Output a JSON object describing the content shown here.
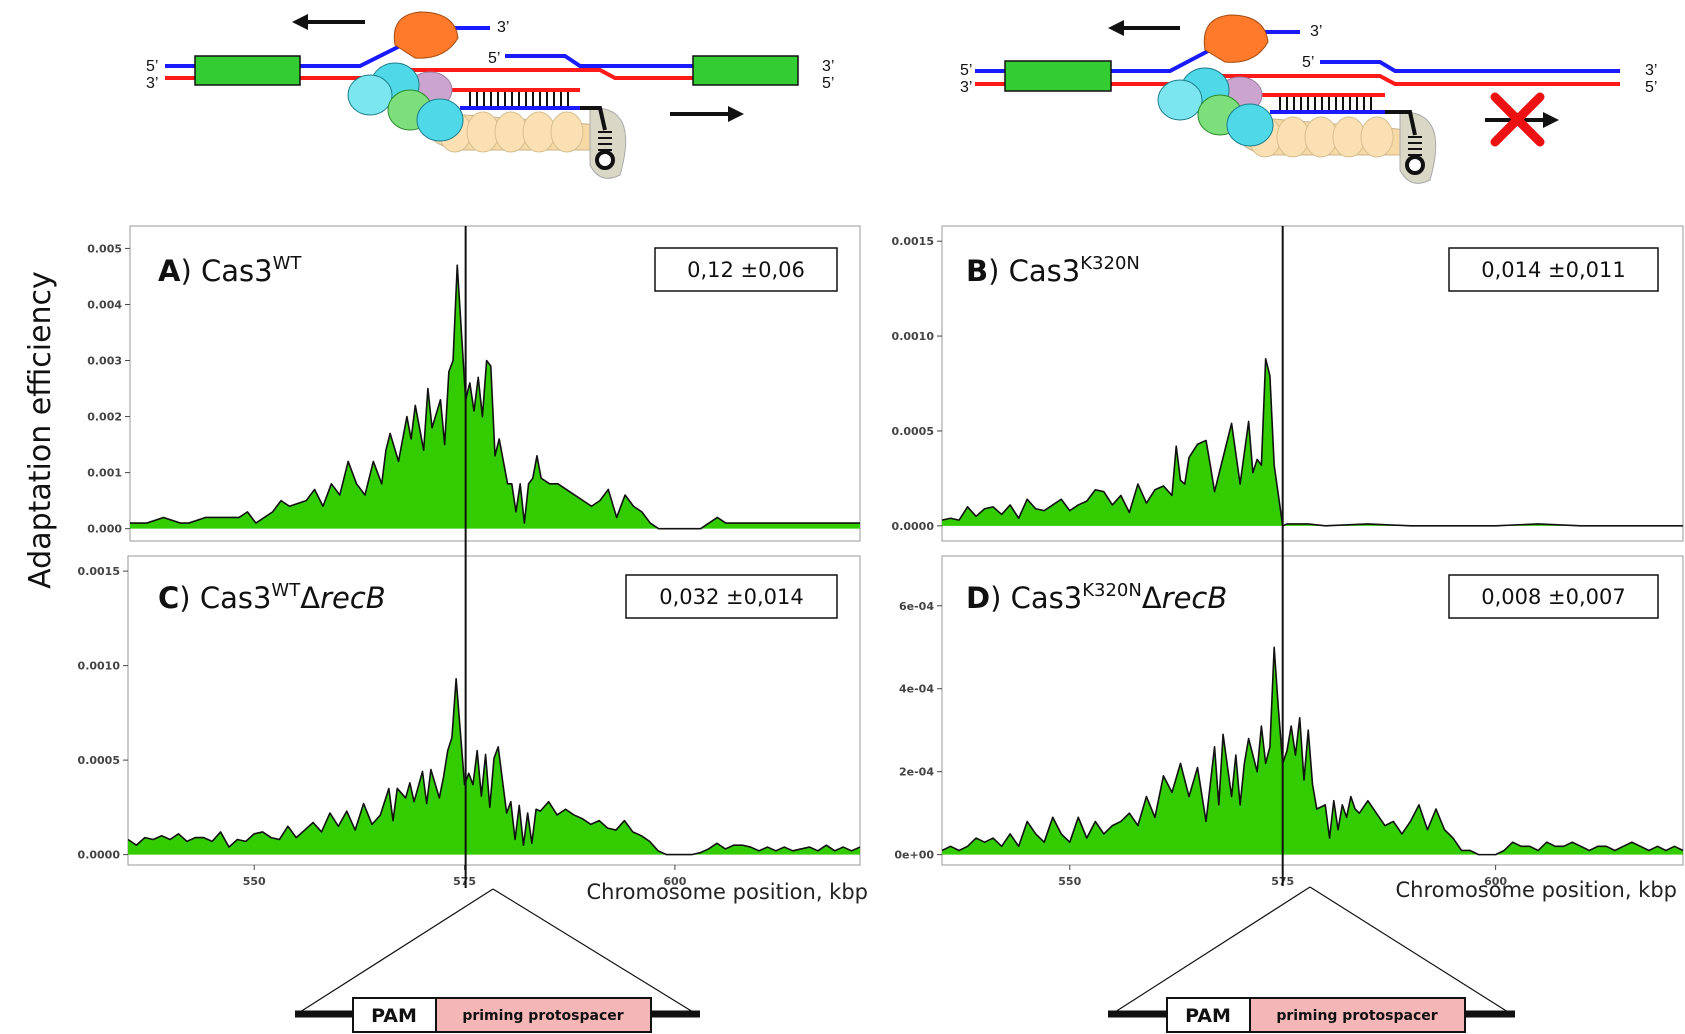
{
  "colors": {
    "fill": "#33cc00",
    "line": "#111111",
    "top_strand": "#1a1aff",
    "bottom_strand": "#ff1a1a",
    "gene_box": "#33cc33",
    "protospacer_fill": "#f4b6b6",
    "cross": "#ee1111"
  },
  "y_axis_title": "Adaptation efficiency",
  "x_axis_title": "Chromosome position, kbp",
  "schematics": [
    {
      "strand_labels": {
        "top_left": "5’",
        "bottom_left": "3’",
        "top_right": "3’",
        "bottom_right": "5’",
        "flap_top": "3’",
        "flap_inner": "5’"
      },
      "left_arrow": "arrow-left-icon",
      "right_arrow": "arrow-right-icon",
      "right_arrow_blocked": false
    },
    {
      "strand_labels": {
        "top_left": "5’",
        "bottom_left": "3’",
        "top_right": "3’",
        "bottom_right": "5’",
        "flap_top": "3’",
        "flap_inner": "5’"
      },
      "left_arrow": "arrow-left-icon",
      "right_arrow": "arrow-right-icon",
      "right_arrow_blocked": true
    }
  ],
  "zoom_boxes": [
    {
      "pam": "PAM",
      "protospacer": "priming protospacer"
    },
    {
      "pam": "PAM",
      "protospacer": "priming protospacer"
    }
  ],
  "chart_data": [
    {
      "type": "area",
      "panel": "A",
      "protein": "Cas3",
      "superscript": "WT",
      "suffix": "",
      "stat_box": "0,12 ±0,06",
      "xlim": [
        535,
        622
      ],
      "ylim": [
        -0.00022,
        0.0054
      ],
      "yticks": [
        0.0,
        0.001,
        0.002,
        0.003,
        0.004,
        0.005
      ],
      "ytick_labels": [
        "0.000",
        "0.001",
        "0.002",
        "0.003",
        "0.004",
        "0.005"
      ],
      "xticks": [],
      "xtick_labels": [],
      "vline": 575,
      "x": [
        535,
        537,
        539,
        541,
        542,
        544,
        546,
        548,
        549,
        550,
        552,
        553,
        554,
        556,
        557,
        558,
        559,
        560,
        561,
        562,
        563,
        564,
        565,
        565.5,
        566,
        567,
        568,
        568.5,
        569,
        570,
        570.5,
        571,
        572,
        572.5,
        573,
        573.5,
        574,
        574.5,
        575,
        575.5,
        576,
        576.5,
        577,
        577.5,
        578,
        578.5,
        579,
        580,
        580.5,
        581,
        581.5,
        582,
        582.5,
        583,
        583.5,
        584,
        585,
        586,
        587,
        588,
        589,
        590,
        591,
        592,
        593,
        594,
        595,
        596,
        597,
        598,
        599,
        600,
        601,
        602,
        603,
        604,
        605,
        606,
        607,
        608,
        609,
        610,
        611,
        612,
        613,
        614,
        615,
        616,
        617,
        618,
        619,
        620,
        621,
        622
      ],
      "y": [
        0.0001,
        0.0001,
        0.0002,
        0.0001,
        0.0001,
        0.0002,
        0.0002,
        0.0002,
        0.0003,
        0.0001,
        0.0003,
        0.0005,
        0.0004,
        0.0005,
        0.0007,
        0.0004,
        0.0008,
        0.0006,
        0.0012,
        0.0008,
        0.0006,
        0.0012,
        0.0008,
        0.0014,
        0.0017,
        0.0012,
        0.002,
        0.0016,
        0.0022,
        0.0014,
        0.0025,
        0.0018,
        0.0023,
        0.0015,
        0.0028,
        0.003,
        0.0047,
        0.0035,
        0.0023,
        0.0026,
        0.0021,
        0.0027,
        0.002,
        0.003,
        0.0029,
        0.0013,
        0.0016,
        0.0008,
        0.0008,
        0.0003,
        0.0008,
        0.0001,
        0.0008,
        0.0009,
        0.0013,
        0.0009,
        0.0008,
        0.0008,
        0.0007,
        0.0006,
        0.0005,
        0.0004,
        0.0005,
        0.0007,
        0.0002,
        0.0006,
        0.0004,
        0.0003,
        0.0001,
        0.0,
        0.0,
        0.0,
        0.0,
        0.0,
        0.0,
        0.0001,
        0.0002,
        0.0001,
        0.0001,
        0.0001,
        0.0001,
        0.0001,
        0.0001,
        0.0001,
        0.0001,
        0.0001,
        0.0001,
        0.0001,
        0.0001,
        0.0001,
        0.0001,
        0.0001,
        0.0001,
        0.0001
      ]
    },
    {
      "type": "area",
      "panel": "B",
      "protein": "Cas3",
      "superscript": "K320N",
      "suffix": "",
      "stat_box": "0,014 ±0,011",
      "xlim": [
        535,
        622
      ],
      "ylim": [
        -8e-05,
        0.00158
      ],
      "yticks": [
        0.0,
        0.0005,
        0.001,
        0.0015
      ],
      "ytick_labels": [
        "0.0000",
        "0.0005",
        "0.0010",
        "0.0015"
      ],
      "xticks": [],
      "xtick_labels": [],
      "vline": 575,
      "x": [
        535,
        536,
        537,
        538,
        539,
        540,
        541,
        542,
        543,
        544,
        545,
        546,
        547,
        548,
        549,
        550,
        551,
        552,
        553,
        554,
        555,
        556,
        557,
        558,
        559,
        560,
        561,
        562,
        562.5,
        563,
        563.5,
        564,
        565,
        566,
        566.5,
        567,
        568,
        569,
        570,
        571,
        571.5,
        572,
        572.5,
        573,
        573.5,
        574,
        575,
        575.5,
        576,
        578,
        580,
        585,
        590,
        595,
        600,
        605,
        610,
        615,
        620,
        622
      ],
      "y": [
        3e-05,
        4e-05,
        3e-05,
        0.0001,
        5e-05,
        9e-05,
        0.0001,
        6e-05,
        0.00011,
        4e-05,
        0.00014,
        9e-05,
        8e-05,
        0.00011,
        0.00014,
        8e-05,
        0.00011,
        0.00013,
        0.00019,
        0.00018,
        0.00011,
        0.00016,
        7e-05,
        0.00022,
        0.00012,
        0.00019,
        0.00021,
        0.00016,
        0.00042,
        0.00024,
        0.00022,
        0.00036,
        0.00043,
        0.00045,
        0.00032,
        0.00018,
        0.00036,
        0.00054,
        0.00022,
        0.00055,
        0.00028,
        0.00035,
        0.00032,
        0.00088,
        0.00079,
        0.00032,
        0.0,
        1e-05,
        1e-05,
        1e-05,
        0.0,
        1e-05,
        0.0,
        0.0,
        0.0,
        1e-05,
        0.0,
        0.0,
        0.0,
        0.0
      ]
    },
    {
      "type": "area",
      "panel": "C",
      "protein": "Cas3",
      "superscript": "WT",
      "suffix": "ΔrecB",
      "stat_box": "0,032 ±0,014",
      "xlim": [
        535,
        622
      ],
      "ylim": [
        -5.5e-05,
        0.00158
      ],
      "yticks": [
        0.0,
        0.0005,
        0.001,
        0.0015
      ],
      "ytick_labels": [
        "0.0000",
        "0.0005",
        "0.0010",
        "0.0015"
      ],
      "xticks": [
        550,
        575,
        600
      ],
      "xtick_labels": [
        "550",
        "575",
        "600"
      ],
      "vline": 575,
      "x": [
        535,
        536,
        537,
        538,
        539,
        540,
        541,
        542,
        543,
        544,
        545,
        546,
        547,
        548,
        549,
        550,
        551,
        552,
        553,
        554,
        555,
        556,
        557,
        558,
        559,
        560,
        561,
        562,
        563,
        564,
        565,
        566,
        566.5,
        567,
        568,
        568.5,
        569,
        570,
        570.5,
        571,
        572,
        572.5,
        573,
        573.5,
        574,
        574.5,
        575,
        575.5,
        576,
        576.5,
        577,
        577.5,
        578,
        578.5,
        579,
        580,
        580.5,
        581,
        581.5,
        582,
        582.5,
        583,
        583.5,
        584,
        585,
        586,
        587,
        588,
        589,
        590,
        591,
        592,
        593,
        594,
        595,
        596,
        597,
        598,
        599,
        600,
        601,
        602,
        603,
        604,
        605,
        606,
        607,
        608,
        609,
        610,
        611,
        612,
        613,
        614,
        615,
        616,
        617,
        618,
        619,
        620,
        621,
        622
      ],
      "y": [
        8e-05,
        5e-05,
        9e-05,
        8e-05,
        0.0001,
        8e-05,
        0.00011,
        7e-05,
        9e-05,
        9e-05,
        7e-05,
        0.00012,
        4e-05,
        8e-05,
        7e-05,
        0.00011,
        0.00012,
        9e-05,
        8e-05,
        0.00015,
        9e-05,
        0.00013,
        0.00017,
        0.00012,
        0.00022,
        0.00015,
        0.00023,
        0.00013,
        0.00027,
        0.00016,
        0.00021,
        0.00035,
        0.00018,
        0.00035,
        0.0003,
        0.00038,
        0.00028,
        0.00044,
        0.00027,
        0.00045,
        0.0003,
        0.00041,
        0.00055,
        0.00062,
        0.00093,
        0.00065,
        0.00037,
        0.00043,
        0.00037,
        0.00055,
        0.00031,
        0.00053,
        0.00025,
        0.00051,
        0.00057,
        0.00022,
        0.00028,
        8e-05,
        0.00026,
        5e-05,
        0.00022,
        6e-05,
        0.00024,
        0.00023,
        0.00028,
        0.00021,
        0.00024,
        0.00021,
        0.00019,
        0.00016,
        0.00018,
        0.00014,
        0.00013,
        0.00018,
        0.00012,
        0.0001,
        7e-05,
        2e-05,
        0.0,
        0.0,
        0.0,
        0.0,
        1e-05,
        3e-05,
        6e-05,
        3e-05,
        5e-05,
        5e-05,
        4e-05,
        2e-05,
        4e-05,
        2e-05,
        4e-05,
        2e-05,
        3e-05,
        4e-05,
        2e-05,
        5e-05,
        2e-05,
        4e-05,
        2e-05,
        4e-05
      ]
    },
    {
      "type": "area",
      "panel": "D",
      "protein": "Cas3",
      "superscript": "K320N",
      "suffix": "ΔrecB",
      "stat_box": "0,008 ±0,007",
      "xlim": [
        535,
        622
      ],
      "ylim": [
        -2.5e-05,
        0.00072
      ],
      "yticks": [
        0.0,
        0.0002,
        0.0004,
        0.0006
      ],
      "ytick_labels": [
        "0e+00",
        "2e-04",
        "4e-04",
        "6e-04"
      ],
      "xticks": [
        550,
        575,
        600
      ],
      "xtick_labels": [
        "550",
        "575",
        "600"
      ],
      "vline": 575,
      "x": [
        535,
        536,
        537,
        538,
        539,
        540,
        541,
        542,
        543,
        544,
        545,
        546,
        547,
        548,
        549,
        550,
        551,
        552,
        553,
        554,
        555,
        556,
        557,
        558,
        559,
        560,
        561,
        562,
        563,
        564,
        565,
        566,
        567,
        567.5,
        568,
        569,
        569.5,
        570,
        570.5,
        571,
        572,
        572.5,
        573,
        573.5,
        574,
        574.5,
        575,
        575.5,
        576,
        576.5,
        577,
        577.5,
        578,
        578.5,
        579,
        580,
        580.5,
        581,
        581.5,
        582,
        582.5,
        583,
        583.5,
        584,
        585,
        586,
        587,
        588,
        589,
        590,
        591,
        592,
        593,
        594,
        595,
        596,
        597,
        598,
        599,
        600,
        601,
        602,
        603,
        604,
        605,
        606,
        607,
        608,
        609,
        610,
        611,
        612,
        613,
        614,
        615,
        616,
        617,
        618,
        619,
        620,
        621,
        622
      ],
      "y": [
        1e-05,
        2e-05,
        1e-05,
        2e-05,
        4e-05,
        3e-05,
        4e-05,
        2e-05,
        5e-05,
        2e-05,
        8e-05,
        5e-05,
        3e-05,
        9e-05,
        5e-05,
        3e-05,
        9e-05,
        4e-05,
        8e-05,
        5e-05,
        7e-05,
        8e-05,
        0.0001,
        7e-05,
        0.00014,
        9e-05,
        0.00019,
        0.00015,
        0.00022,
        0.00014,
        0.00021,
        8e-05,
        0.00026,
        0.00012,
        0.00029,
        0.00014,
        0.00024,
        0.00012,
        0.00022,
        0.00028,
        0.0002,
        0.00031,
        0.00022,
        0.00026,
        0.0005,
        0.00035,
        0.00022,
        0.00025,
        0.00031,
        0.00024,
        0.00033,
        0.00018,
        0.0003,
        0.00017,
        0.00011,
        0.00012,
        4e-05,
        0.00013,
        6e-05,
        0.00012,
        9e-05,
        0.00014,
        0.00011,
        0.0001,
        0.00013,
        0.0001,
        7e-05,
        8e-05,
        5e-05,
        8e-05,
        0.00012,
        6e-05,
        0.00011,
        6e-05,
        4e-05,
        1e-05,
        1e-05,
        0.0,
        0.0,
        0.0,
        1e-05,
        3e-05,
        2e-05,
        2e-05,
        1e-05,
        3e-05,
        2e-05,
        2e-05,
        3e-05,
        2e-05,
        1e-05,
        2e-05,
        2e-05,
        1e-05,
        2e-05,
        3e-05,
        2e-05,
        1e-05,
        2e-05,
        1e-05,
        2e-05,
        1e-05
      ]
    }
  ]
}
